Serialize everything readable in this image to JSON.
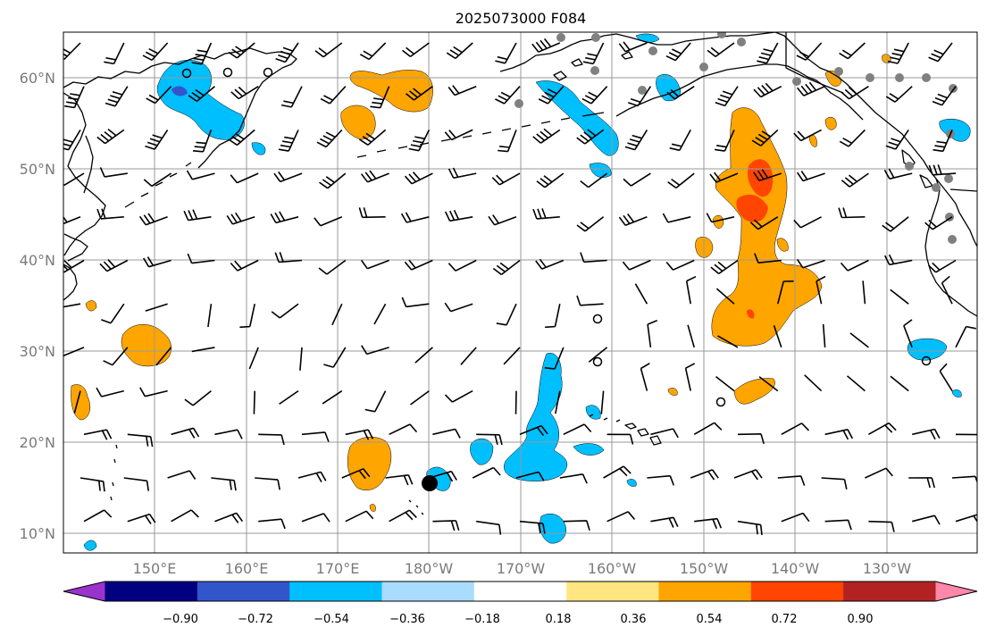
{
  "title": "2025073000 F084",
  "lat_labels": [
    "60°N",
    "50°N",
    "40°N",
    "30°N",
    "20°N",
    "10°N"
  ],
  "lon_labels": [
    "150°E",
    "160°E",
    "170°E",
    "180°W",
    "170°W",
    "160°W",
    "150°W",
    "140°W",
    "130°W"
  ],
  "colorbar": {
    "levels": [
      "−0.90",
      "−0.72",
      "−0.54",
      "−0.36",
      "−0.18",
      "0.18",
      "0.36",
      "0.54",
      "0.72",
      "0.90"
    ],
    "colors": [
      "#9933cc",
      "#000080",
      "#3355cc",
      "#00bfff",
      "#aadcff",
      "#ffffff",
      "#ffe680",
      "#ffa500",
      "#ff4500",
      "#b22222",
      "#ff88aa"
    ]
  },
  "field_colors": {
    "positive_weak": "#ffa500",
    "positive_strong": "#ff4500",
    "negative_weak": "#00bfff",
    "negative_strong": "#3355cc"
  },
  "station_color": "#808080",
  "storm_marker_color": "#000000"
}
